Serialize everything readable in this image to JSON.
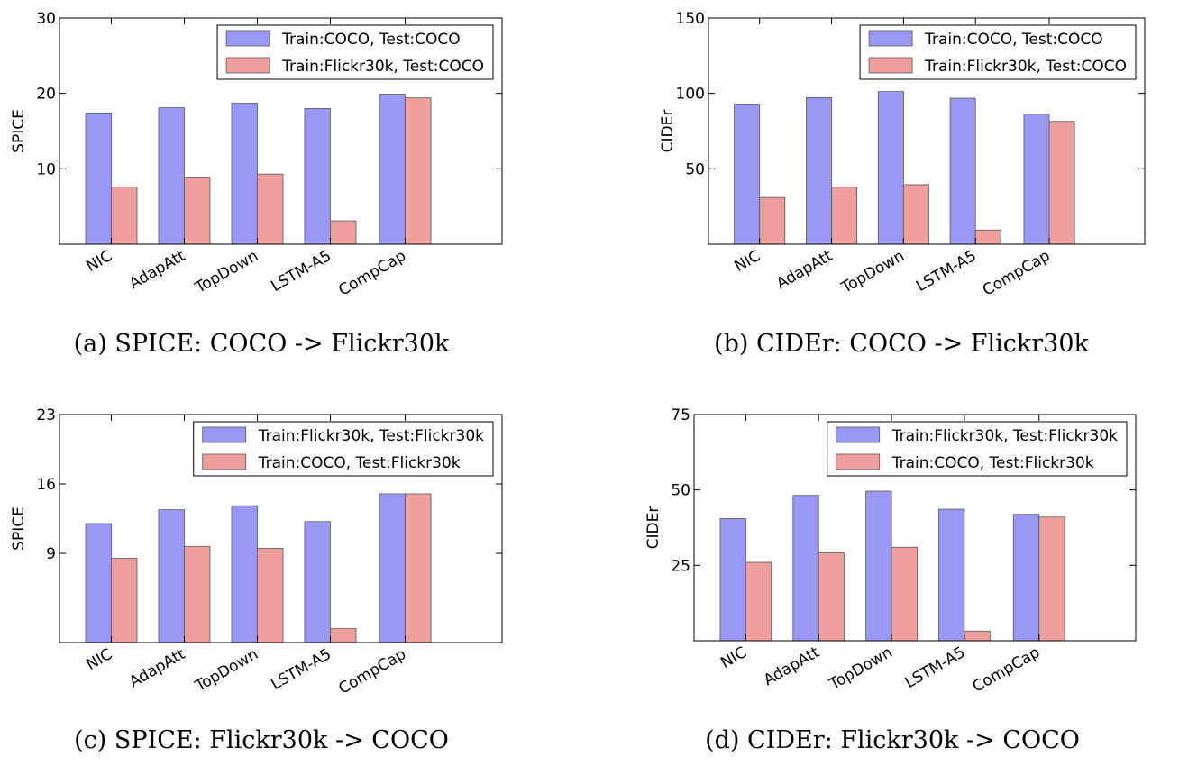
{
  "chart_data": [
    {
      "type": "bar",
      "caption": "(a) SPICE: COCO -> Flickr30k",
      "ylabel": "SPICE",
      "ylim": [
        0,
        30
      ],
      "yticks": [
        10,
        20,
        30
      ],
      "categories": [
        "NIC",
        "AdapAtt",
        "TopDown",
        "LSTM-A5",
        "CompCap"
      ],
      "legend_position": "top-right",
      "series": [
        {
          "name": "Train:COCO, Test:COCO",
          "color": "#9999f5",
          "values": [
            17.4,
            18.1,
            18.7,
            18.0,
            19.9
          ]
        },
        {
          "name": "Train:Flickr30k, Test:COCO",
          "color": "#f0a09c",
          "values": [
            7.6,
            8.9,
            9.3,
            3.1,
            19.4
          ]
        }
      ]
    },
    {
      "type": "bar",
      "caption": "(b) CIDEr: COCO -> Flickr30k",
      "ylabel": "CIDEr",
      "ylim": [
        0,
        150
      ],
      "yticks": [
        50,
        100,
        150
      ],
      "categories": [
        "NIC",
        "AdapAtt",
        "TopDown",
        "LSTM-A5",
        "CompCap"
      ],
      "legend_position": "top-right",
      "series": [
        {
          "name": "Train:COCO, Test:COCO",
          "color": "#9999f5",
          "values": [
            92.9,
            97.2,
            101.2,
            96.8,
            86.2
          ]
        },
        {
          "name": "Train:Flickr30k, Test:COCO",
          "color": "#f0a09c",
          "values": [
            31.0,
            37.8,
            39.5,
            9.4,
            81.4
          ]
        }
      ]
    },
    {
      "type": "bar",
      "caption": "(c) SPICE: Flickr30k -> COCO",
      "ylabel": "SPICE",
      "ylim": [
        0,
        23
      ],
      "yticks": [
        9,
        16,
        23
      ],
      "categories": [
        "NIC",
        "AdapAtt",
        "TopDown",
        "LSTM-A5",
        "CompCap"
      ],
      "legend_position": "top-right",
      "series": [
        {
          "name": "Train:Flickr30k, Test:Flickr30k",
          "color": "#9999f5",
          "values": [
            12.0,
            13.4,
            13.8,
            12.2,
            15.0
          ]
        },
        {
          "name": "Train:COCO, Test:Flickr30k",
          "color": "#f0a09c",
          "values": [
            8.5,
            9.7,
            9.5,
            1.4,
            15.0
          ]
        }
      ]
    },
    {
      "type": "bar",
      "caption": "(d) CIDEr: Flickr30k -> COCO",
      "ylabel": "CIDEr",
      "ylim": [
        0,
        75
      ],
      "yticks": [
        25,
        50,
        75
      ],
      "categories": [
        "NIC",
        "AdapAtt",
        "TopDown",
        "LSTM-A5",
        "CompCap"
      ],
      "legend_position": "top-right",
      "series": [
        {
          "name": "Train:Flickr30k, Test:Flickr30k",
          "color": "#9999f5",
          "values": [
            40.5,
            48.2,
            49.6,
            43.6,
            41.9
          ]
        },
        {
          "name": "Train:COCO, Test:Flickr30k",
          "color": "#f0a09c",
          "values": [
            26.0,
            29.1,
            31.0,
            3.2,
            41.0
          ]
        }
      ]
    }
  ]
}
